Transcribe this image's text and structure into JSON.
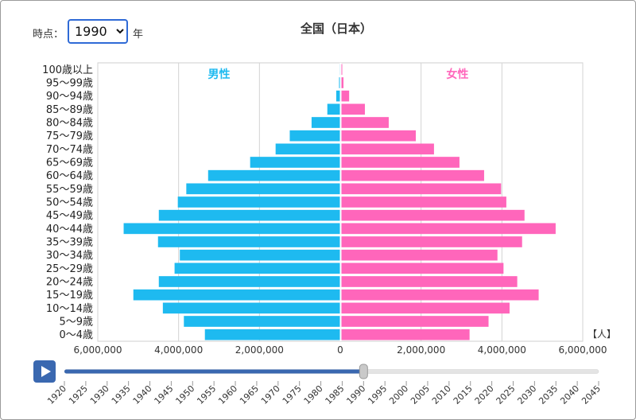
{
  "controls": {
    "year_label": "時点：",
    "year_suffix": "年",
    "year_options": [
      "1990"
    ],
    "selected_year": "1990",
    "play_icon": "play-icon",
    "slider_years": [
      "1920",
      "1925",
      "1930",
      "1935",
      "1940",
      "1945",
      "1950",
      "1955",
      "1960",
      "1965",
      "1970",
      "1975",
      "1980",
      "1985",
      "1990",
      "1995",
      "2000",
      "2005",
      "2010",
      "2015",
      "2020",
      "2025",
      "2030",
      "2035",
      "2040",
      "2045"
    ],
    "slider_value": "1990"
  },
  "colors": {
    "male": "#1ebaf0",
    "female": "#ff66bb",
    "slider": "#3a68b0"
  },
  "chart_data": {
    "type": "bar",
    "title": "全国（日本）",
    "orientation": "horizontal-pyramid",
    "unit_label": "【人】",
    "categories": [
      "0〜4歳",
      "5〜9歳",
      "10〜14歳",
      "15〜19歳",
      "20〜24歳",
      "25〜29歳",
      "30〜34歳",
      "35〜39歳",
      "40〜44歳",
      "45〜49歳",
      "50〜54歳",
      "55〜59歳",
      "60〜64歳",
      "65〜69歳",
      "70〜74歳",
      "75〜79歳",
      "80〜84歳",
      "85〜89歳",
      "90〜94歳",
      "95〜99歳",
      "100歳以上"
    ],
    "series": [
      {
        "name": "男性",
        "values": [
          3340000,
          3860000,
          4380000,
          5110000,
          4480000,
          4090000,
          3960000,
          4500000,
          5350000,
          4480000,
          4010000,
          3800000,
          3260000,
          2220000,
          1590000,
          1240000,
          700000,
          310000,
          90000,
          20000,
          3000
        ]
      },
      {
        "name": "女性",
        "values": [
          3170000,
          3640000,
          4160000,
          4880000,
          4350000,
          4010000,
          3860000,
          4470000,
          5300000,
          4530000,
          4080000,
          3950000,
          3530000,
          2920000,
          2290000,
          1840000,
          1170000,
          580000,
          190000,
          50000,
          5000
        ]
      }
    ],
    "x_ticks": [
      "6,000,000",
      "4,000,000",
      "2,000,000",
      "0",
      "2,000,000",
      "4,000,000",
      "6,000,000"
    ],
    "xlim": [
      -6000000,
      6000000
    ],
    "grid": true
  }
}
